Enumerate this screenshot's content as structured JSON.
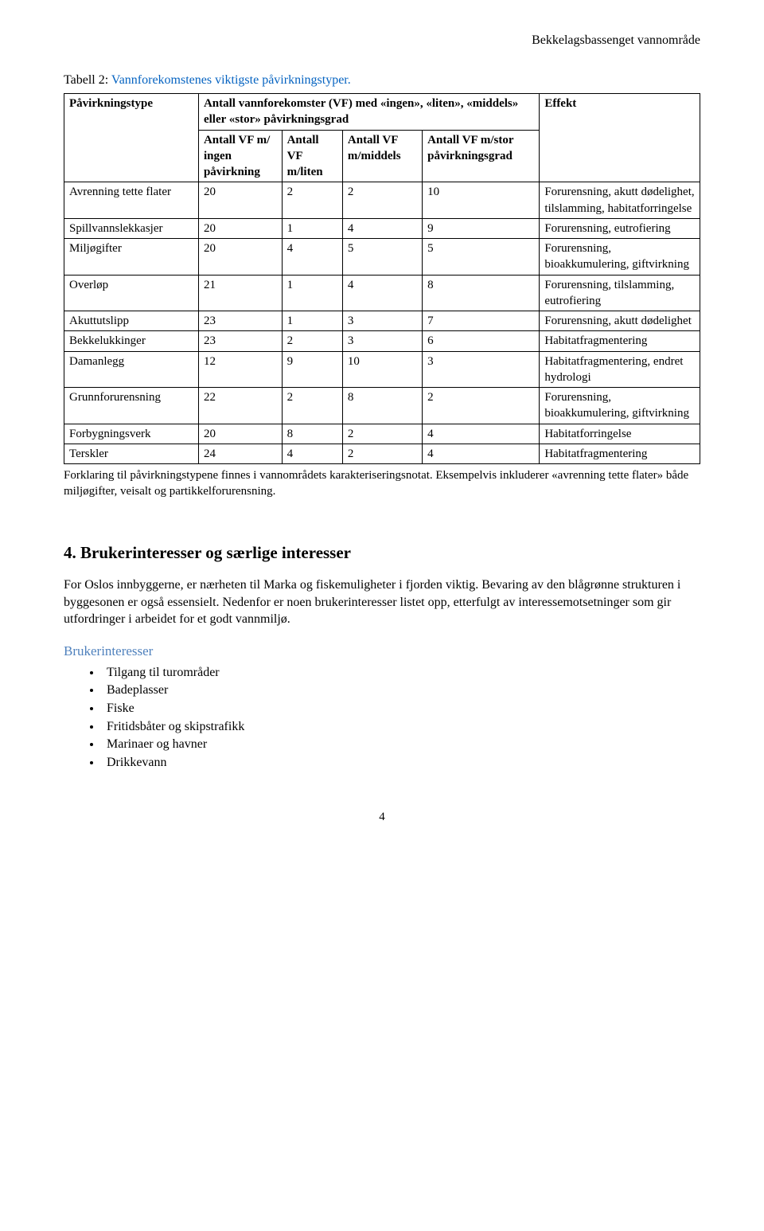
{
  "header_right": "Bekkelagsbassenget vannområde",
  "table_caption_prefix": "Tabell 2: ",
  "table_caption_link": "Vannforekomstenes viktigste påvirkningstyper.",
  "colors": {
    "link": "#0563c1",
    "subhead": "#4f81bd",
    "text": "#000000",
    "background": "#ffffff",
    "border": "#000000"
  },
  "table": {
    "head": {
      "c0": "Påvirkningstype",
      "group": "Antall vannforekomster (VF) med «ingen», «liten», «middels» eller «stor» påvirkningsgrad",
      "c5": "Effekt",
      "sub1": "Antall VF m/ ingen påvirkning",
      "sub2": "Antall VF m/liten",
      "sub3": "Antall VF m/middels",
      "sub4": "Antall VF m/stor påvirkningsgrad"
    },
    "rows": [
      {
        "name": "Avrenning tette flater",
        "v": [
          "20",
          "2",
          "2",
          "10"
        ],
        "effect": "Forurensning, akutt dødelighet, tilslamming, habitatforringelse"
      },
      {
        "name": "Spillvannslekkasjer",
        "v": [
          "20",
          "1",
          "4",
          "9"
        ],
        "effect": "Forurensning, eutrofiering"
      },
      {
        "name": "Miljøgifter",
        "v": [
          "20",
          "4",
          "5",
          "5"
        ],
        "effect": "Forurensning, bioakkumulering, giftvirkning"
      },
      {
        "name": "Overløp",
        "v": [
          "21",
          "1",
          "4",
          "8"
        ],
        "effect": "Forurensning, tilslamming, eutrofiering"
      },
      {
        "name": "Akuttutslipp",
        "v": [
          "23",
          "1",
          "3",
          "7"
        ],
        "effect": "Forurensning, akutt dødelighet"
      },
      {
        "name": "Bekkelukkinger",
        "v": [
          "23",
          "2",
          "3",
          "6"
        ],
        "effect": "Habitatfragmentering"
      },
      {
        "name": "Damanlegg",
        "v": [
          "12",
          "9",
          "10",
          "3"
        ],
        "effect": "Habitatfragmentering, endret hydrologi"
      },
      {
        "name": "Grunnforurensning",
        "v": [
          "22",
          "2",
          "8",
          "2"
        ],
        "effect": "Forurensning, bioakkumulering, giftvirkning"
      },
      {
        "name": "Forbygningsverk",
        "v": [
          "20",
          "8",
          "2",
          "4"
        ],
        "effect": "Habitatforringelse"
      },
      {
        "name": "Terskler",
        "v": [
          "24",
          "4",
          "2",
          "4"
        ],
        "effect": "Habitatfragmentering"
      }
    ]
  },
  "footnote": "Forklaring til påvirkningstypene finnes i vannområdets karakteriseringsnotat. Eksempelvis inkluderer «avrenning tette flater» både miljøgifter, veisalt og partikkelforurensning.",
  "section_heading": "4. Brukerinteresser og særlige interesser",
  "para1": "For Oslos innbyggerne, er nærheten til Marka og fiskemuligheter i fjorden viktig. Bevaring av den blågrønne strukturen i byggesonen er også essensielt. Nedenfor er noen brukerinteresser listet opp, etterfulgt av interessemotsetninger som gir utfordringer i arbeidet for et godt vannmiljø.",
  "subhead": "Brukerinteresser",
  "bullets": [
    "Tilgang til turområder",
    "Badeplasser",
    "Fiske",
    "Fritidsbåter og skipstrafikk",
    "Marinaer og havner",
    "Drikkevann"
  ],
  "page_number": "4"
}
